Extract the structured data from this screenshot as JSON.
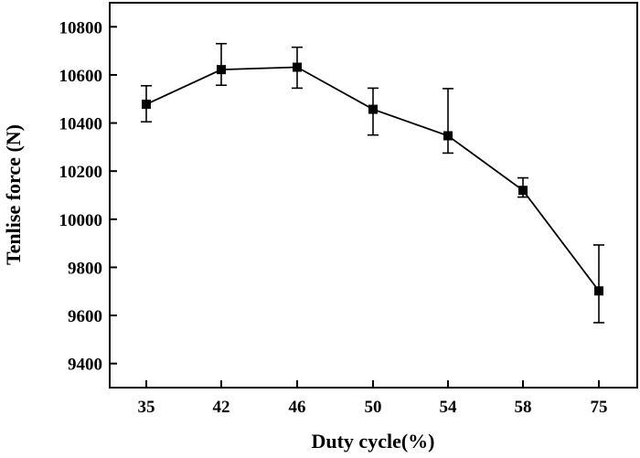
{
  "chart_data": {
    "type": "line",
    "title": "",
    "xlabel": "Duty cycle(%)",
    "ylabel": "Tenlise force (N)",
    "categories": [
      "35",
      "42",
      "46",
      "50",
      "54",
      "58",
      "75"
    ],
    "ylim": [
      9300,
      10900
    ],
    "yticks": [
      "9400",
      "9600",
      "9800",
      "10000",
      "10200",
      "10400",
      "10600",
      "10800"
    ],
    "grid": false,
    "legend": "none",
    "marker": "square",
    "line_color": "#000000",
    "series": [
      {
        "values": [
          10478,
          10622,
          10632,
          10457,
          10347,
          10120,
          9702
        ],
        "error_low": [
          10405,
          10557,
          10545,
          10350,
          10275,
          10092,
          9570
        ],
        "error_high": [
          10555,
          10730,
          10715,
          10545,
          10543,
          10172,
          9893
        ]
      }
    ]
  }
}
